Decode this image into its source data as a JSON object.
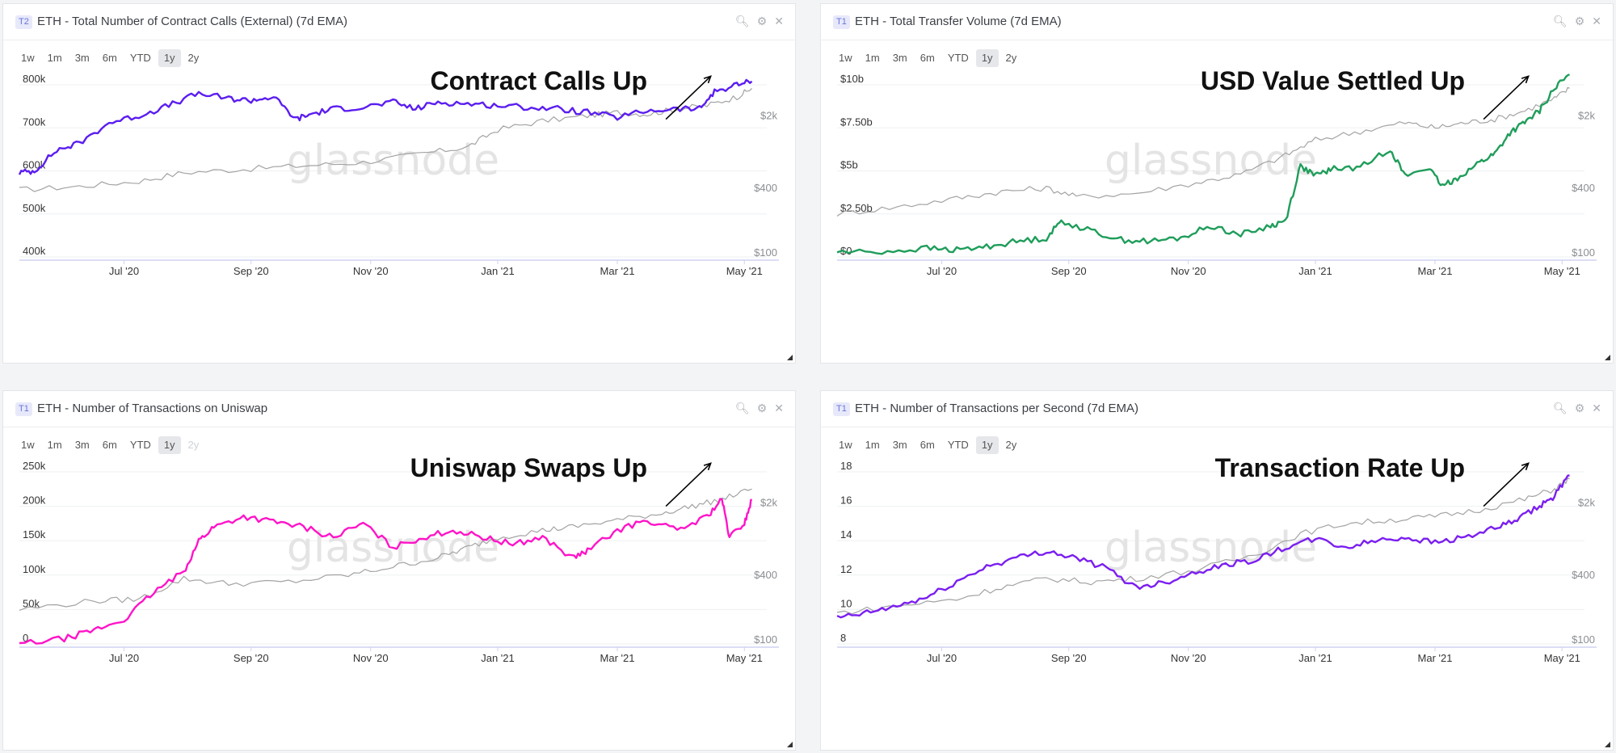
{
  "chart_data": [
    {
      "type": "line",
      "tag": "T2",
      "title": "ETH - Total Number of Contract Calls (External) (7d EMA)",
      "annotation": "Contract Calls Up",
      "watermark": "glassnode",
      "ranges": [
        "1w",
        "1m",
        "3m",
        "6m",
        "YTD",
        "1y",
        "2y"
      ],
      "selected_range": "1y",
      "x_ticks": [
        "Jul '20",
        "Sep '20",
        "Nov '20",
        "Jan '21",
        "Mar '21",
        "May '21"
      ],
      "left_ticks": [
        "800k",
        "700k",
        "600k",
        "500k",
        "400k"
      ],
      "right_ticks": [
        "$2k",
        "$400",
        "$100"
      ],
      "ylim": [
        400000,
        800000
      ],
      "series": [
        {
          "color": "#5b1df0",
          "points": [
            [
              0,
              0.49
            ],
            [
              0.02,
              0.5
            ],
            [
              0.05,
              0.62
            ],
            [
              0.08,
              0.66
            ],
            [
              0.12,
              0.78
            ],
            [
              0.16,
              0.82
            ],
            [
              0.2,
              0.88
            ],
            [
              0.24,
              0.95
            ],
            [
              0.28,
              0.92
            ],
            [
              0.31,
              0.91
            ],
            [
              0.34,
              0.93
            ],
            [
              0.37,
              0.8
            ],
            [
              0.39,
              0.83
            ],
            [
              0.42,
              0.86
            ],
            [
              0.46,
              0.87
            ],
            [
              0.5,
              0.9
            ],
            [
              0.53,
              0.86
            ],
            [
              0.56,
              0.9
            ],
            [
              0.6,
              0.89
            ],
            [
              0.64,
              0.88
            ],
            [
              0.68,
              0.87
            ],
            [
              0.72,
              0.86
            ],
            [
              0.76,
              0.84
            ],
            [
              0.8,
              0.81
            ],
            [
              0.84,
              0.85
            ],
            [
              0.88,
              0.86
            ],
            [
              0.91,
              0.86
            ],
            [
              0.93,
              0.96
            ],
            [
              0.96,
              1.0
            ],
            [
              0.98,
              1.02
            ]
          ]
        },
        {
          "color": "#a3a3a3",
          "points": [
            [
              0,
              0.39
            ],
            [
              0.08,
              0.41
            ],
            [
              0.16,
              0.44
            ],
            [
              0.22,
              0.49
            ],
            [
              0.3,
              0.51
            ],
            [
              0.38,
              0.53
            ],
            [
              0.46,
              0.55
            ],
            [
              0.54,
              0.6
            ],
            [
              0.6,
              0.64
            ],
            [
              0.64,
              0.74
            ],
            [
              0.7,
              0.79
            ],
            [
              0.76,
              0.82
            ],
            [
              0.8,
              0.84
            ],
            [
              0.84,
              0.83
            ],
            [
              0.88,
              0.86
            ],
            [
              0.92,
              0.88
            ],
            [
              0.96,
              0.93
            ],
            [
              0.98,
              0.98
            ]
          ]
        }
      ]
    },
    {
      "type": "line",
      "tag": "T1",
      "title": "ETH - Total Transfer Volume (7d EMA)",
      "annotation": "USD Value Settled Up",
      "watermark": "glassnode",
      "ranges": [
        "1w",
        "1m",
        "3m",
        "6m",
        "YTD",
        "1y",
        "2y"
      ],
      "selected_range": "1y",
      "x_ticks": [
        "Jul '20",
        "Sep '20",
        "Nov '20",
        "Jan '21",
        "Mar '21",
        "May '21"
      ],
      "left_ticks": [
        "$10b",
        "$7.50b",
        "$5b",
        "$2.50b",
        "$0"
      ],
      "right_ticks": [
        "$2k",
        "$400",
        "$100"
      ],
      "ylim": [
        0,
        10000000000
      ],
      "series": [
        {
          "color": "#1f9d5a",
          "points": [
            [
              0,
              0.03
            ],
            [
              0.06,
              0.03
            ],
            [
              0.12,
              0.05
            ],
            [
              0.16,
              0.04
            ],
            [
              0.2,
              0.06
            ],
            [
              0.24,
              0.09
            ],
            [
              0.28,
              0.11
            ],
            [
              0.3,
              0.21
            ],
            [
              0.34,
              0.15
            ],
            [
              0.38,
              0.1
            ],
            [
              0.42,
              0.09
            ],
            [
              0.46,
              0.11
            ],
            [
              0.5,
              0.18
            ],
            [
              0.54,
              0.13
            ],
            [
              0.58,
              0.18
            ],
            [
              0.6,
              0.21
            ],
            [
              0.62,
              0.53
            ],
            [
              0.64,
              0.47
            ],
            [
              0.66,
              0.51
            ],
            [
              0.7,
              0.52
            ],
            [
              0.74,
              0.63
            ],
            [
              0.76,
              0.47
            ],
            [
              0.79,
              0.52
            ],
            [
              0.81,
              0.41
            ],
            [
              0.83,
              0.46
            ],
            [
              0.86,
              0.55
            ],
            [
              0.88,
              0.6
            ],
            [
              0.9,
              0.72
            ],
            [
              0.92,
              0.78
            ],
            [
              0.94,
              0.85
            ],
            [
              0.96,
              0.98
            ],
            [
              0.98,
              1.06
            ]
          ]
        },
        {
          "color": "#a3a3a3",
          "points": [
            [
              0,
              0.25
            ],
            [
              0.08,
              0.29
            ],
            [
              0.16,
              0.34
            ],
            [
              0.22,
              0.38
            ],
            [
              0.28,
              0.4
            ],
            [
              0.32,
              0.35
            ],
            [
              0.4,
              0.37
            ],
            [
              0.48,
              0.43
            ],
            [
              0.54,
              0.48
            ],
            [
              0.6,
              0.59
            ],
            [
              0.64,
              0.68
            ],
            [
              0.7,
              0.73
            ],
            [
              0.76,
              0.78
            ],
            [
              0.8,
              0.75
            ],
            [
              0.84,
              0.78
            ],
            [
              0.88,
              0.8
            ],
            [
              0.92,
              0.85
            ],
            [
              0.96,
              0.92
            ],
            [
              0.98,
              0.98
            ]
          ]
        }
      ]
    },
    {
      "type": "line",
      "tag": "T1",
      "title": "ETH - Number of Transactions on Uniswap",
      "annotation": "Uniswap Swaps Up",
      "watermark": "glassnode",
      "ranges": [
        "1w",
        "1m",
        "3m",
        "6m",
        "YTD",
        "1y",
        "2y"
      ],
      "selected_range": "1y",
      "x_ticks": [
        "Jul '20",
        "Sep '20",
        "Nov '20",
        "Jan '21",
        "Mar '21",
        "May '21"
      ],
      "left_ticks": [
        "250k",
        "200k",
        "150k",
        "100k",
        "50k",
        "0"
      ],
      "right_ticks": [
        "$2k",
        "$400",
        "$100"
      ],
      "ylim": [
        0,
        250000
      ],
      "series": [
        {
          "color": "#ff14c8",
          "points": [
            [
              0,
              0.0
            ],
            [
              0.06,
              0.03
            ],
            [
              0.1,
              0.08
            ],
            [
              0.14,
              0.14
            ],
            [
              0.18,
              0.3
            ],
            [
              0.22,
              0.42
            ],
            [
              0.24,
              0.6
            ],
            [
              0.26,
              0.68
            ],
            [
              0.3,
              0.74
            ],
            [
              0.34,
              0.71
            ],
            [
              0.38,
              0.68
            ],
            [
              0.42,
              0.62
            ],
            [
              0.46,
              0.7
            ],
            [
              0.5,
              0.56
            ],
            [
              0.54,
              0.62
            ],
            [
              0.58,
              0.66
            ],
            [
              0.62,
              0.62
            ],
            [
              0.66,
              0.58
            ],
            [
              0.7,
              0.62
            ],
            [
              0.74,
              0.5
            ],
            [
              0.76,
              0.54
            ],
            [
              0.8,
              0.66
            ],
            [
              0.84,
              0.72
            ],
            [
              0.88,
              0.66
            ],
            [
              0.92,
              0.74
            ],
            [
              0.94,
              0.84
            ],
            [
              0.95,
              0.62
            ],
            [
              0.97,
              0.7
            ],
            [
              0.98,
              0.84
            ]
          ]
        },
        {
          "color": "#a3a3a3",
          "points": [
            [
              0,
              0.2
            ],
            [
              0.1,
              0.25
            ],
            [
              0.16,
              0.26
            ],
            [
              0.22,
              0.38
            ],
            [
              0.28,
              0.35
            ],
            [
              0.36,
              0.36
            ],
            [
              0.44,
              0.4
            ],
            [
              0.5,
              0.45
            ],
            [
              0.56,
              0.5
            ],
            [
              0.6,
              0.56
            ],
            [
              0.64,
              0.62
            ],
            [
              0.7,
              0.66
            ],
            [
              0.74,
              0.68
            ],
            [
              0.8,
              0.72
            ],
            [
              0.86,
              0.76
            ],
            [
              0.9,
              0.8
            ],
            [
              0.94,
              0.84
            ],
            [
              0.98,
              0.9
            ]
          ]
        }
      ]
    },
    {
      "type": "line",
      "tag": "T1",
      "title": "ETH - Number of Transactions per Second (7d EMA)",
      "annotation": "Transaction Rate Up",
      "watermark": "glassnode",
      "ranges": [
        "1w",
        "1m",
        "3m",
        "6m",
        "YTD",
        "1y",
        "2y"
      ],
      "selected_range": "1y",
      "x_ticks": [
        "Jul '20",
        "Sep '20",
        "Nov '20",
        "Jan '21",
        "Mar '21",
        "May '21"
      ],
      "left_ticks": [
        "18",
        "16",
        "14",
        "12",
        "10",
        "8"
      ],
      "right_ticks": [
        "$2k",
        "$400",
        "$100"
      ],
      "ylim": [
        8,
        18
      ],
      "series": [
        {
          "color": "#7b1ff0",
          "points": [
            [
              0,
              0.15
            ],
            [
              0.04,
              0.18
            ],
            [
              0.08,
              0.22
            ],
            [
              0.12,
              0.27
            ],
            [
              0.16,
              0.36
            ],
            [
              0.2,
              0.45
            ],
            [
              0.24,
              0.5
            ],
            [
              0.28,
              0.54
            ],
            [
              0.32,
              0.5
            ],
            [
              0.36,
              0.44
            ],
            [
              0.4,
              0.33
            ],
            [
              0.44,
              0.36
            ],
            [
              0.48,
              0.42
            ],
            [
              0.52,
              0.46
            ],
            [
              0.56,
              0.49
            ],
            [
              0.6,
              0.56
            ],
            [
              0.64,
              0.61
            ],
            [
              0.68,
              0.56
            ],
            [
              0.72,
              0.6
            ],
            [
              0.76,
              0.62
            ],
            [
              0.8,
              0.59
            ],
            [
              0.84,
              0.62
            ],
            [
              0.88,
              0.67
            ],
            [
              0.91,
              0.72
            ],
            [
              0.94,
              0.8
            ],
            [
              0.96,
              0.86
            ],
            [
              0.98,
              0.98
            ]
          ]
        },
        {
          "color": "#a3a3a3",
          "points": [
            [
              0,
              0.18
            ],
            [
              0.08,
              0.22
            ],
            [
              0.16,
              0.26
            ],
            [
              0.22,
              0.33
            ],
            [
              0.28,
              0.38
            ],
            [
              0.34,
              0.36
            ],
            [
              0.4,
              0.38
            ],
            [
              0.48,
              0.43
            ],
            [
              0.56,
              0.52
            ],
            [
              0.62,
              0.64
            ],
            [
              0.68,
              0.7
            ],
            [
              0.74,
              0.72
            ],
            [
              0.8,
              0.74
            ],
            [
              0.86,
              0.78
            ],
            [
              0.92,
              0.84
            ],
            [
              0.96,
              0.9
            ],
            [
              0.98,
              0.96
            ]
          ]
        }
      ]
    }
  ]
}
